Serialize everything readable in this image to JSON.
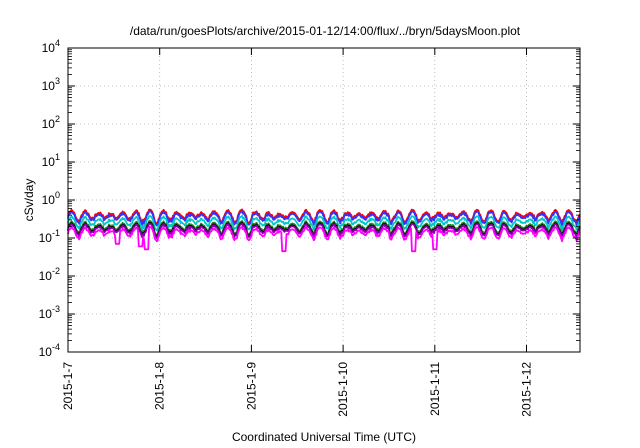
{
  "chart_data": {
    "type": "line",
    "title": "/data/run/goesPlots/archive/2015-01-12/14:00/flux/../bryn/5daysMoon.plot",
    "xlabel": "Coordinated Universal Time (UTC)",
    "ylabel": "cSv/day",
    "y_scale": "log",
    "ylim": [
      0.0001,
      10000
    ],
    "y_ticks": [
      {
        "value": 0.0001,
        "exp": "-4"
      },
      {
        "value": 0.001,
        "exp": "-3"
      },
      {
        "value": 0.01,
        "exp": "-2"
      },
      {
        "value": 0.1,
        "exp": "-1"
      },
      {
        "value": 1,
        "exp": "0"
      },
      {
        "value": 10,
        "exp": "1"
      },
      {
        "value": 100,
        "exp": "2"
      },
      {
        "value": 1000,
        "exp": "3"
      },
      {
        "value": 10000,
        "exp": "4"
      }
    ],
    "y_tick_base": "10",
    "xlim": [
      "2015-01-07",
      "2015-01-12T14:00"
    ],
    "x_ticks": [
      "2015-1-7",
      "2015-1-8",
      "2015-1-9",
      "2015-1-10",
      "2015-1-11",
      "2015-1-12"
    ],
    "grid": true,
    "series": [
      {
        "color": "#ff0000",
        "base": 0.4,
        "dips": []
      },
      {
        "color": "#3333ff",
        "base": 0.36,
        "dips": []
      },
      {
        "color": "#00c8c8",
        "base": 0.27,
        "dips": []
      },
      {
        "color": "#228822",
        "base": 0.2,
        "dips": []
      },
      {
        "color": "#000000",
        "base": 0.18,
        "dips": []
      },
      {
        "color": "#8800aa",
        "base": 0.17,
        "dips": []
      },
      {
        "color": "#ff00ff",
        "base": 0.14,
        "dips": [
          {
            "x": "2015-01-07T13:00",
            "value": 0.07
          },
          {
            "x": "2015-01-07T19:00",
            "value": 0.06
          },
          {
            "x": "2015-01-07T20:30",
            "value": 0.05
          },
          {
            "x": "2015-01-09T08:30",
            "value": 0.045
          },
          {
            "x": "2015-01-10T18:30",
            "value": 0.045
          },
          {
            "x": "2015-01-11T00:00",
            "value": 0.05
          }
        ]
      }
    ]
  }
}
